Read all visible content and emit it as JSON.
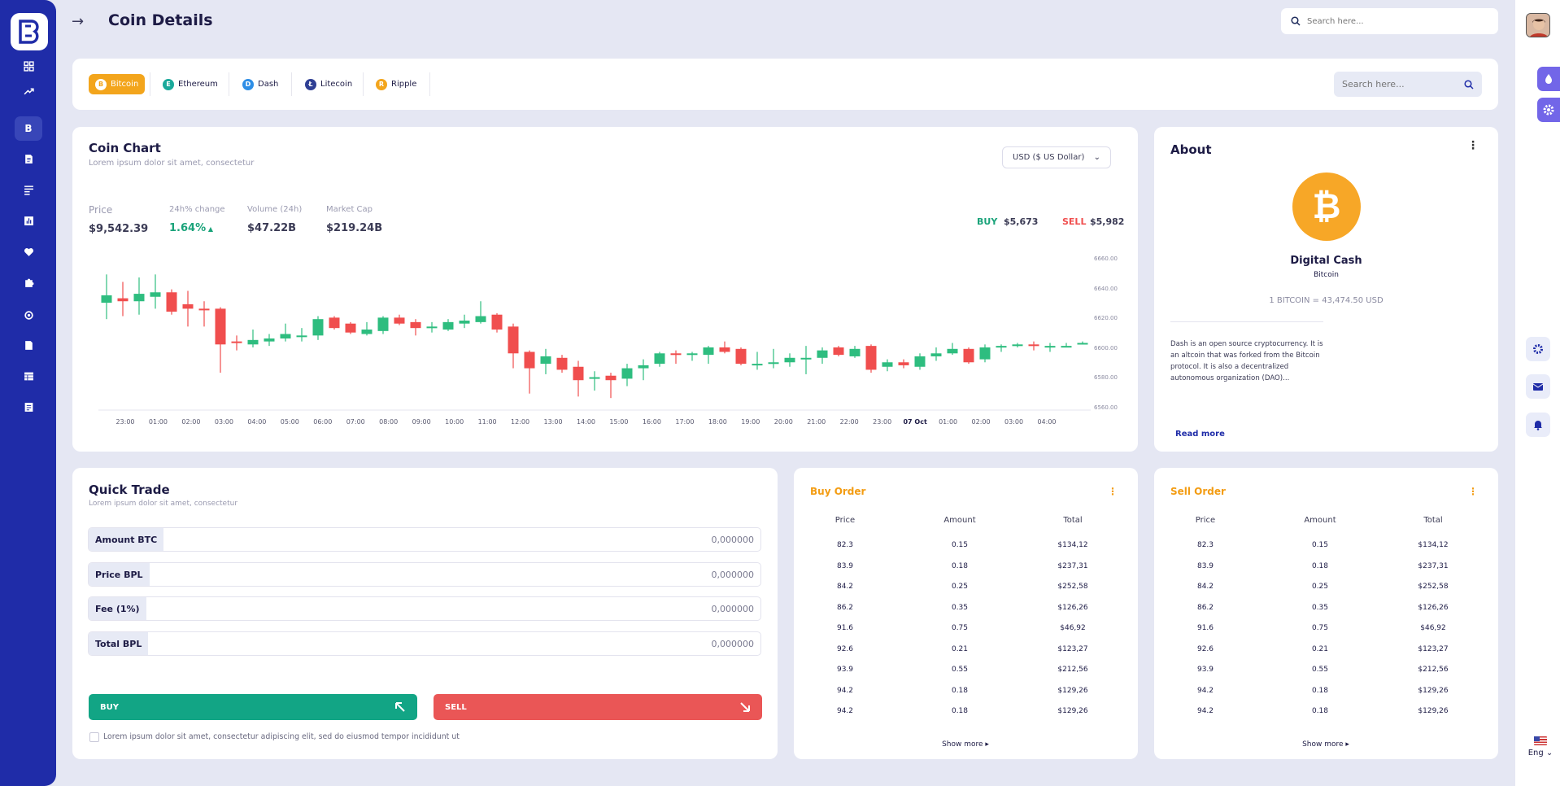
{
  "header": {
    "title": "Coin Details",
    "search_placeholder": "Search here..."
  },
  "coin_tabs": [
    {
      "label": "Bitcoin",
      "color": "#f3a51c",
      "glyph": "B"
    },
    {
      "label": "Ethereum",
      "color": "#1aa99b",
      "glyph": "E"
    },
    {
      "label": "Dash",
      "color": "#2e8ee6",
      "glyph": "D"
    },
    {
      "label": "Litecoin",
      "color": "#2f3f94",
      "glyph": "L"
    },
    {
      "label": "Ripple",
      "color": "#f3a51c",
      "glyph": "R"
    }
  ],
  "coin_search_placeholder": "Search here...",
  "coin_chart": {
    "title": "Coin Chart",
    "subtitle": "Lorem ipsum dolor sit amet, consectetur",
    "currency": "USD ($ US Dollar)",
    "stats": {
      "price_label": "Price",
      "price": "$9,542.39",
      "change_label": "24h% change",
      "change": "1.64%",
      "volume_label": "Volume (24h)",
      "volume": "$47.22B",
      "cap_label": "Market Cap",
      "cap": "$219.24B"
    },
    "buy_label": "BUY",
    "buy_value": "$5,673",
    "sell_label": "SELL",
    "sell_value": "$5,982"
  },
  "chart_data": {
    "type": "candlestick",
    "title": "",
    "y_ticks": [
      "6660.00",
      "6640.00",
      "6620.00",
      "6600.00",
      "6580.00",
      "6560.00"
    ],
    "ylim": [
      6560,
      6660
    ],
    "x_ticks": [
      "23:00",
      "01:00",
      "02:00",
      "03:00",
      "04:00",
      "05:00",
      "06:00",
      "07:00",
      "08:00",
      "09:00",
      "10:00",
      "11:00",
      "12:00",
      "13:00",
      "14:00",
      "15:00",
      "16:00",
      "17:00",
      "18:00",
      "19:00",
      "20:00",
      "21:00",
      "22:00",
      "23:00",
      "07 Oct",
      "01:00",
      "02:00",
      "03:00",
      "04:00"
    ],
    "candles": [
      {
        "o": 6631,
        "c": 6636,
        "h": 6650,
        "l": 6620
      },
      {
        "o": 6634,
        "c": 6632,
        "h": 6645,
        "l": 6622
      },
      {
        "o": 6632,
        "c": 6637,
        "h": 6648,
        "l": 6623
      },
      {
        "o": 6635,
        "c": 6638,
        "h": 6650,
        "l": 6627
      },
      {
        "o": 6638,
        "c": 6625,
        "h": 6640,
        "l": 6623
      },
      {
        "o": 6630,
        "c": 6627,
        "h": 6639,
        "l": 6615
      },
      {
        "o": 6627,
        "c": 6626,
        "h": 6632,
        "l": 6615
      },
      {
        "o": 6627,
        "c": 6603,
        "h": 6628,
        "l": 6584
      },
      {
        "o": 6605,
        "c": 6604,
        "h": 6609,
        "l": 6599
      },
      {
        "o": 6603,
        "c": 6606,
        "h": 6613,
        "l": 6601
      },
      {
        "o": 6605,
        "c": 6607,
        "h": 6610,
        "l": 6602
      },
      {
        "o": 6607,
        "c": 6610,
        "h": 6617,
        "l": 6605
      },
      {
        "o": 6609,
        "c": 6609,
        "h": 6614,
        "l": 6605
      },
      {
        "o": 6609,
        "c": 6620,
        "h": 6622,
        "l": 6606
      },
      {
        "o": 6621,
        "c": 6614,
        "h": 6622,
        "l": 6613
      },
      {
        "o": 6617,
        "c": 6611,
        "h": 6618,
        "l": 6610
      },
      {
        "o": 6610,
        "c": 6613,
        "h": 6618,
        "l": 6609
      },
      {
        "o": 6612,
        "c": 6621,
        "h": 6622,
        "l": 6610
      },
      {
        "o": 6621,
        "c": 6617,
        "h": 6623,
        "l": 6616
      },
      {
        "o": 6618,
        "c": 6614,
        "h": 6620,
        "l": 6609
      },
      {
        "o": 6615,
        "c": 6615,
        "h": 6618,
        "l": 6611
      },
      {
        "o": 6613,
        "c": 6618,
        "h": 6620,
        "l": 6612
      },
      {
        "o": 6617,
        "c": 6619,
        "h": 6623,
        "l": 6614
      },
      {
        "o": 6618,
        "c": 6622,
        "h": 6632,
        "l": 6617
      },
      {
        "o": 6623,
        "c": 6613,
        "h": 6624,
        "l": 6611
      },
      {
        "o": 6615,
        "c": 6597,
        "h": 6617,
        "l": 6587
      },
      {
        "o": 6598,
        "c": 6587,
        "h": 6599,
        "l": 6570
      },
      {
        "o": 6590,
        "c": 6595,
        "h": 6600,
        "l": 6583
      },
      {
        "o": 6594,
        "c": 6586,
        "h": 6596,
        "l": 6584
      },
      {
        "o": 6588,
        "c": 6579,
        "h": 6592,
        "l": 6568
      },
      {
        "o": 6580,
        "c": 6581,
        "h": 6585,
        "l": 6572
      },
      {
        "o": 6582,
        "c": 6579,
        "h": 6584,
        "l": 6567
      },
      {
        "o": 6580,
        "c": 6587,
        "h": 6590,
        "l": 6575
      },
      {
        "o": 6587,
        "c": 6589,
        "h": 6593,
        "l": 6579
      },
      {
        "o": 6590,
        "c": 6597,
        "h": 6598,
        "l": 6588
      },
      {
        "o": 6597,
        "c": 6596,
        "h": 6599,
        "l": 6590
      },
      {
        "o": 6596,
        "c": 6597,
        "h": 6598,
        "l": 6592
      },
      {
        "o": 6596,
        "c": 6601,
        "h": 6602,
        "l": 6590
      },
      {
        "o": 6601,
        "c": 6598,
        "h": 6605,
        "l": 6597
      },
      {
        "o": 6600,
        "c": 6590,
        "h": 6601,
        "l": 6589
      },
      {
        "o": 6590,
        "c": 6590,
        "h": 6598,
        "l": 6586
      },
      {
        "o": 6590,
        "c": 6591,
        "h": 6600,
        "l": 6587
      },
      {
        "o": 6591,
        "c": 6594,
        "h": 6597,
        "l": 6588
      },
      {
        "o": 6593,
        "c": 6594,
        "h": 6602,
        "l": 6583
      },
      {
        "o": 6594,
        "c": 6599,
        "h": 6601,
        "l": 6590
      },
      {
        "o": 6601,
        "c": 6596,
        "h": 6602,
        "l": 6595
      },
      {
        "o": 6595,
        "c": 6600,
        "h": 6602,
        "l": 6594
      },
      {
        "o": 6602,
        "c": 6586,
        "h": 6603,
        "l": 6584
      },
      {
        "o": 6588,
        "c": 6591,
        "h": 6593,
        "l": 6585
      },
      {
        "o": 6591,
        "c": 6589,
        "h": 6593,
        "l": 6587
      },
      {
        "o": 6588,
        "c": 6595,
        "h": 6597,
        "l": 6586
      },
      {
        "o": 6595,
        "c": 6597,
        "h": 6601,
        "l": 6592
      },
      {
        "o": 6597,
        "c": 6600,
        "h": 6604,
        "l": 6596
      },
      {
        "o": 6600,
        "c": 6591,
        "h": 6601,
        "l": 6590
      },
      {
        "o": 6593,
        "c": 6601,
        "h": 6603,
        "l": 6591
      },
      {
        "o": 6601,
        "c": 6602,
        "h": 6603,
        "l": 6598
      },
      {
        "o": 6602,
        "c": 6603,
        "h": 6604,
        "l": 6601
      },
      {
        "o": 6603,
        "c": 6602,
        "h": 6605,
        "l": 6599
      },
      {
        "o": 6602,
        "c": 6602,
        "h": 6604,
        "l": 6598
      },
      {
        "o": 6601,
        "c": 6602,
        "h": 6604,
        "l": 6601
      },
      {
        "o": 6603,
        "c": 6604,
        "h": 6605,
        "l": 6603
      }
    ]
  },
  "about": {
    "title": "About",
    "name": "Digital Cash",
    "coin": "Bitcoin",
    "rate": "1 BITCOIN = 43,474.50 USD",
    "desc": "Dash is an open source cryptocurrency. It is an altcoin that was forked from the Bitcoin protocol. It is also a decentralized autonomous organization (DAO)...",
    "read_more": "Read more"
  },
  "quick_trade": {
    "title": "Quick Trade",
    "subtitle": "Lorem ipsum dolor sit amet, consectetur",
    "rows": [
      {
        "label": "Amount BTC",
        "value": "0,000000"
      },
      {
        "label": "Price BPL",
        "value": "0,000000"
      },
      {
        "label": "Fee (1%)",
        "value": "0,000000"
      },
      {
        "label": "Total BPL",
        "value": "0,000000"
      }
    ],
    "buy": "BUY",
    "sell": "SELL",
    "terms": "Lorem ipsum dolor sit amet, consectetur adipiscing elit, sed do eiusmod tempor incididunt ut"
  },
  "buy_order": {
    "title": "Buy Order",
    "headers": [
      "Price",
      "Amount",
      "Total"
    ],
    "rows": [
      [
        "82.3",
        "0.15",
        "$134,12"
      ],
      [
        "83.9",
        "0.18",
        "$237,31"
      ],
      [
        "84.2",
        "0.25",
        "$252,58"
      ],
      [
        "86.2",
        "0.35",
        "$126,26"
      ],
      [
        "91.6",
        "0.75",
        "$46,92"
      ],
      [
        "92.6",
        "0.21",
        "$123,27"
      ],
      [
        "93.9",
        "0.55",
        "$212,56"
      ],
      [
        "94.2",
        "0.18",
        "$129,26"
      ],
      [
        "94.2",
        "0.18",
        "$129,26"
      ]
    ],
    "show_more": "Show more"
  },
  "sell_order": {
    "title": "Sell Order",
    "headers": [
      "Price",
      "Amount",
      "Total"
    ],
    "rows": [
      [
        "82.3",
        "0.15",
        "$134,12"
      ],
      [
        "83.9",
        "0.18",
        "$237,31"
      ],
      [
        "84.2",
        "0.25",
        "$252,58"
      ],
      [
        "86.2",
        "0.35",
        "$126,26"
      ],
      [
        "91.6",
        "0.75",
        "$46,92"
      ],
      [
        "92.6",
        "0.21",
        "$123,27"
      ],
      [
        "93.9",
        "0.55",
        "$212,56"
      ],
      [
        "94.2",
        "0.18",
        "$129,26"
      ],
      [
        "94.2",
        "0.18",
        "$129,26"
      ]
    ],
    "show_more": "Show more"
  },
  "lang": "Eng",
  "colors": {
    "up": "#2ebd7f",
    "down": "#f04e4e",
    "accent": "#f3a51c",
    "sidebar": "#1f2ca8"
  }
}
